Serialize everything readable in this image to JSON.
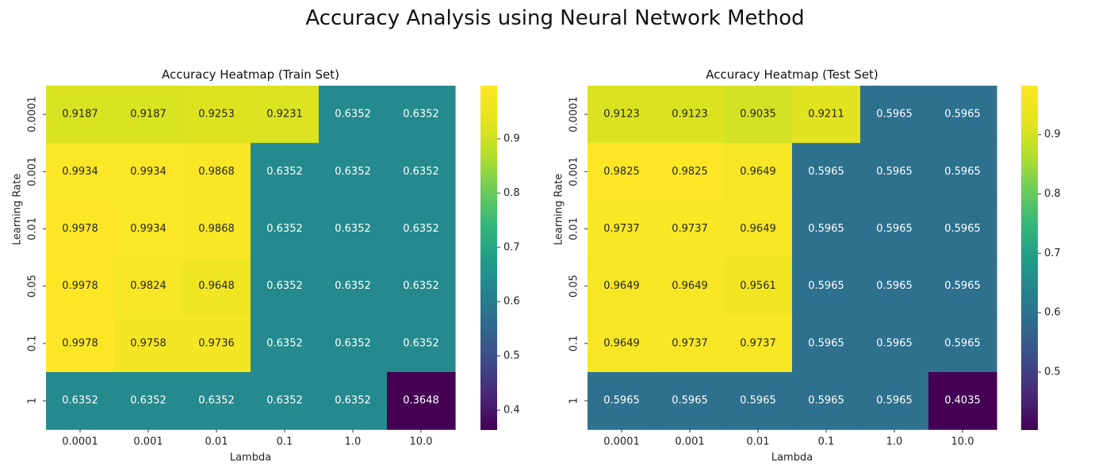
{
  "figure": {
    "title": "Accuracy Analysis using Neural Network Method"
  },
  "chart_data": [
    {
      "type": "heatmap",
      "title": "Accuracy Heatmap (Train Set)",
      "xlabel": "Lambda",
      "ylabel": "Learning Rate",
      "x": [
        "0.0001",
        "0.001",
        "0.01",
        "0.1",
        "1.0",
        "10.0"
      ],
      "y": [
        "0.0001",
        "0.001",
        "0.01",
        "0.05",
        "0.1",
        "1"
      ],
      "values": [
        [
          0.9187,
          0.9187,
          0.9253,
          0.9231,
          0.6352,
          0.6352
        ],
        [
          0.9934,
          0.9934,
          0.9868,
          0.6352,
          0.6352,
          0.6352
        ],
        [
          0.9978,
          0.9934,
          0.9868,
          0.6352,
          0.6352,
          0.6352
        ],
        [
          0.9978,
          0.9824,
          0.9648,
          0.6352,
          0.6352,
          0.6352
        ],
        [
          0.9978,
          0.9758,
          0.9736,
          0.6352,
          0.6352,
          0.6352
        ],
        [
          0.6352,
          0.6352,
          0.6352,
          0.6352,
          0.6352,
          0.3648
        ]
      ],
      "colormap": "viridis",
      "vmin": 0.3648,
      "vmax": 0.9978,
      "colorbar_ticks": [
        "0.4",
        "0.5",
        "0.6",
        "0.7",
        "0.8",
        "0.9"
      ]
    },
    {
      "type": "heatmap",
      "title": "Accuracy Heatmap (Test Set)",
      "xlabel": "Lambda",
      "ylabel": "Learning Rate",
      "x": [
        "0.0001",
        "0.001",
        "0.01",
        "0.1",
        "1.0",
        "10.0"
      ],
      "y": [
        "0.0001",
        "0.001",
        "0.01",
        "0.05",
        "0.1",
        "1"
      ],
      "values": [
        [
          0.9123,
          0.9123,
          0.9035,
          0.9211,
          0.5965,
          0.5965
        ],
        [
          0.9825,
          0.9825,
          0.9649,
          0.5965,
          0.5965,
          0.5965
        ],
        [
          0.9737,
          0.9737,
          0.9649,
          0.5965,
          0.5965,
          0.5965
        ],
        [
          0.9649,
          0.9649,
          0.9561,
          0.5965,
          0.5965,
          0.5965
        ],
        [
          0.9649,
          0.9737,
          0.9737,
          0.5965,
          0.5965,
          0.5965
        ],
        [
          0.5965,
          0.5965,
          0.5965,
          0.5965,
          0.5965,
          0.4035
        ]
      ],
      "colormap": "viridis",
      "vmin": 0.4035,
      "vmax": 0.9825,
      "colorbar_ticks": [
        "0.5",
        "0.6",
        "0.7",
        "0.8",
        "0.9"
      ]
    }
  ]
}
